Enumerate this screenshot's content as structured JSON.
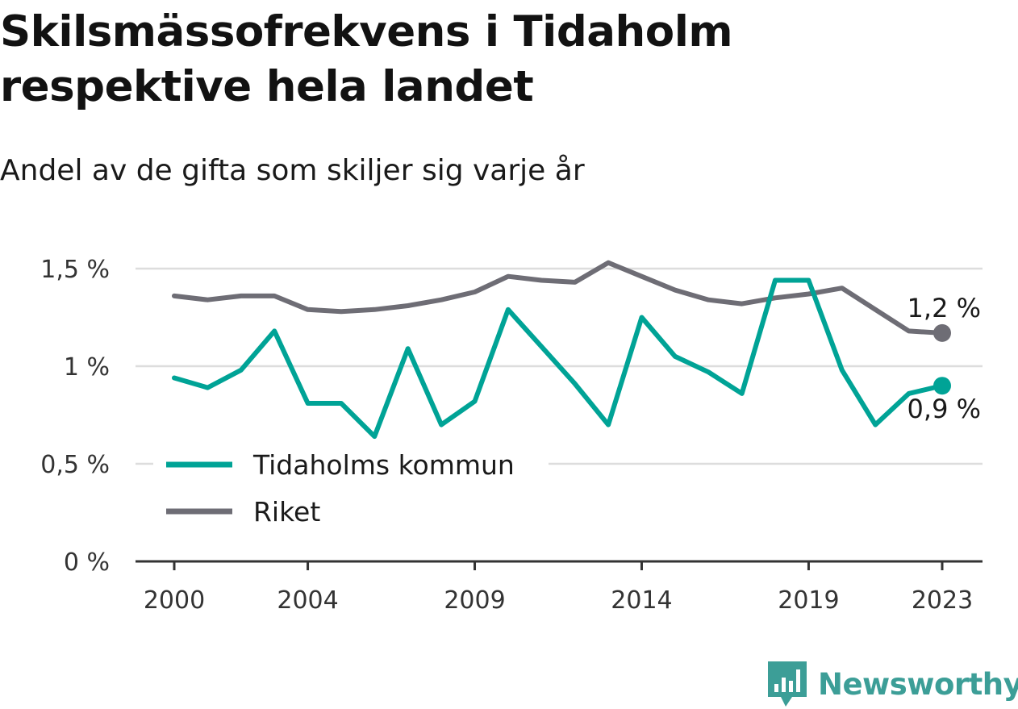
{
  "title": "Skilsmässofrekvens i Tidaholm respektive hela landet",
  "subtitle": "Andel av de gifta som skiljer sig varje år",
  "chart_data": {
    "type": "line",
    "title": "Skilsmässofrekvens i Tidaholm respektive hela landet",
    "subtitle": "Andel av de gifta som skiljer sig varje år",
    "x": [
      2000,
      2001,
      2002,
      2003,
      2004,
      2005,
      2006,
      2007,
      2008,
      2009,
      2010,
      2011,
      2012,
      2013,
      2014,
      2015,
      2016,
      2017,
      2018,
      2019,
      2020,
      2021,
      2022,
      2023
    ],
    "x_ticks": [
      2000,
      2004,
      2009,
      2014,
      2019,
      2023
    ],
    "x_tick_labels": [
      "2000",
      "2004",
      "2009",
      "2014",
      "2019",
      "2023"
    ],
    "ylim": [
      0,
      1.5
    ],
    "y_ticks": [
      0,
      0.5,
      1,
      1.5
    ],
    "y_tick_labels": [
      "0 %",
      "0,5 %",
      "1 %",
      "1,5 %"
    ],
    "grid": "horizontal",
    "legend_position": "lower-left",
    "series": [
      {
        "name": "Tidaholms kommun",
        "color": "#00a396",
        "values": [
          0.94,
          0.89,
          0.98,
          1.18,
          0.81,
          0.81,
          0.64,
          1.09,
          0.7,
          0.82,
          1.29,
          1.1,
          0.91,
          0.7,
          1.25,
          1.05,
          0.97,
          0.86,
          1.44,
          1.44,
          0.98,
          0.7,
          0.86,
          0.9
        ],
        "end_label": "0,9 %"
      },
      {
        "name": "Riket",
        "color": "#6e6d75",
        "values": [
          1.36,
          1.34,
          1.36,
          1.36,
          1.29,
          1.28,
          1.29,
          1.31,
          1.34,
          1.38,
          1.46,
          1.44,
          1.43,
          1.53,
          1.46,
          1.39,
          1.34,
          1.32,
          1.35,
          1.37,
          1.4,
          1.29,
          1.18,
          1.17
        ],
        "end_label": "1,2 %"
      }
    ]
  },
  "logo": {
    "text": "Newsworthy",
    "icon": "newsworthy-bar-chart-icon",
    "color": "#3c9e97"
  }
}
